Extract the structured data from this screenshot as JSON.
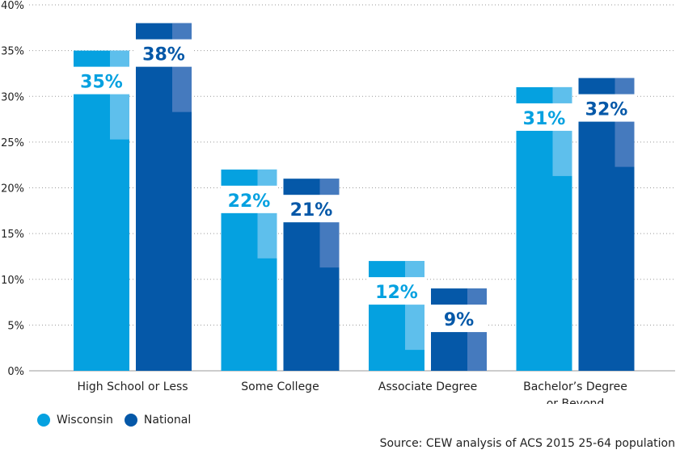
{
  "chart_data": {
    "type": "bar",
    "categories": [
      "High School or Less",
      "Some College",
      "Associate Degree",
      "Bachelor's Degree or Beyond"
    ],
    "category_lines": [
      [
        "High School or Less"
      ],
      [
        "Some College"
      ],
      [
        "Associate Degree"
      ],
      [
        "Bachelor’s Degree",
        "or Beyond"
      ]
    ],
    "series": [
      {
        "name": "Wisconsin",
        "values": [
          35,
          22,
          12,
          31
        ],
        "labels": [
          "35%",
          "22%",
          "12%",
          "31%"
        ],
        "color": "#05A1E0"
      },
      {
        "name": "National",
        "values": [
          38,
          21,
          9,
          32
        ],
        "labels": [
          "38%",
          "21%",
          "9%",
          "32%"
        ],
        "color": "#0558A8"
      }
    ],
    "ylim": [
      0,
      40
    ],
    "yticks": [
      0,
      5,
      10,
      15,
      20,
      25,
      30,
      35,
      40
    ],
    "ytick_labels": [
      "0%",
      "5%",
      "10%",
      "15%",
      "20%",
      "25%",
      "30%",
      "35%",
      "40%"
    ],
    "grid": true,
    "legend_position": "bottom-left"
  },
  "source": "Source: CEW analysis of ACS 2015 25-64 population"
}
